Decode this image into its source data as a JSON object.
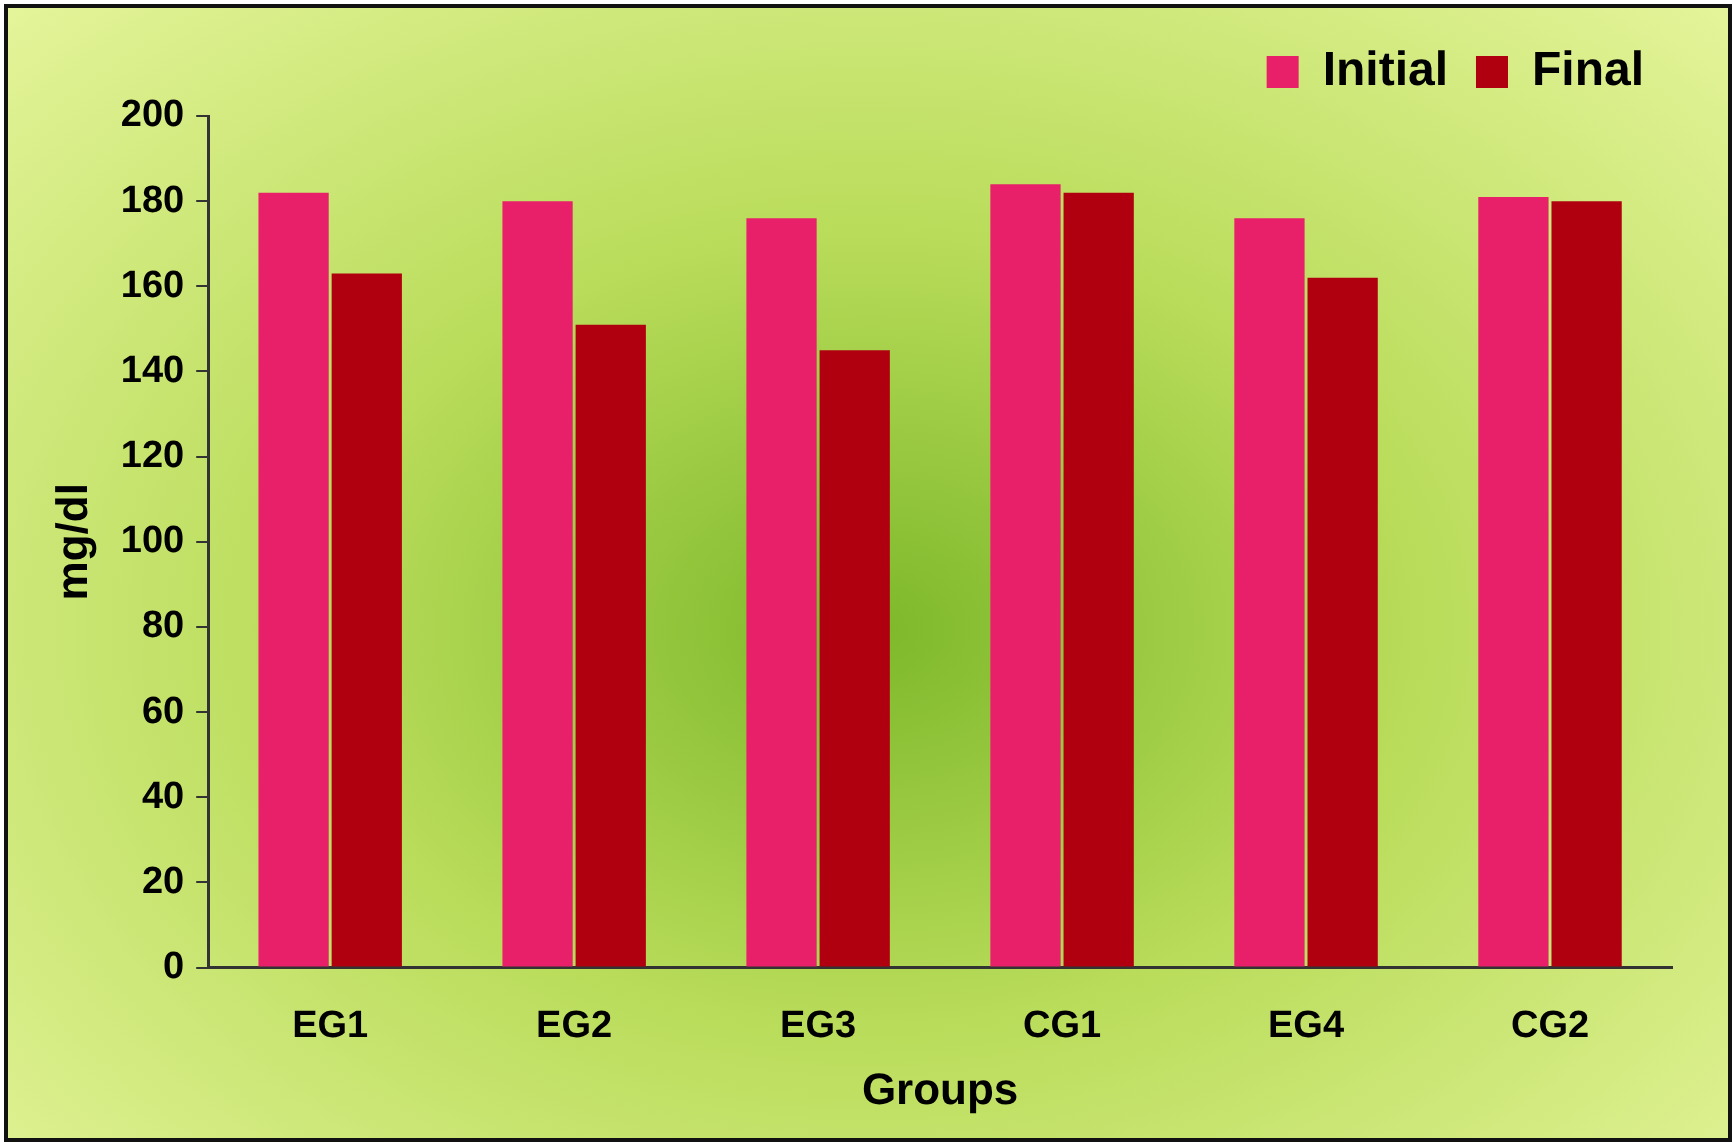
{
  "chart_data": {
    "type": "bar",
    "xlabel": "Groups",
    "ylabel": "mg/dl",
    "categories": [
      "EG1",
      "EG2",
      "EG3",
      "CG1",
      "EG4",
      "CG2"
    ],
    "series": [
      {
        "name": "Initial",
        "color": "#e8206a",
        "values": [
          182,
          180,
          176,
          184,
          176,
          181
        ]
      },
      {
        "name": "Final",
        "color": "#b00010",
        "values": [
          163,
          151,
          145,
          182,
          162,
          180
        ]
      }
    ],
    "ylim": [
      0,
      200
    ],
    "yticks": [
      0,
      20,
      40,
      60,
      80,
      100,
      120,
      140,
      160,
      180,
      200
    ],
    "grid": false,
    "legend": "top right"
  }
}
